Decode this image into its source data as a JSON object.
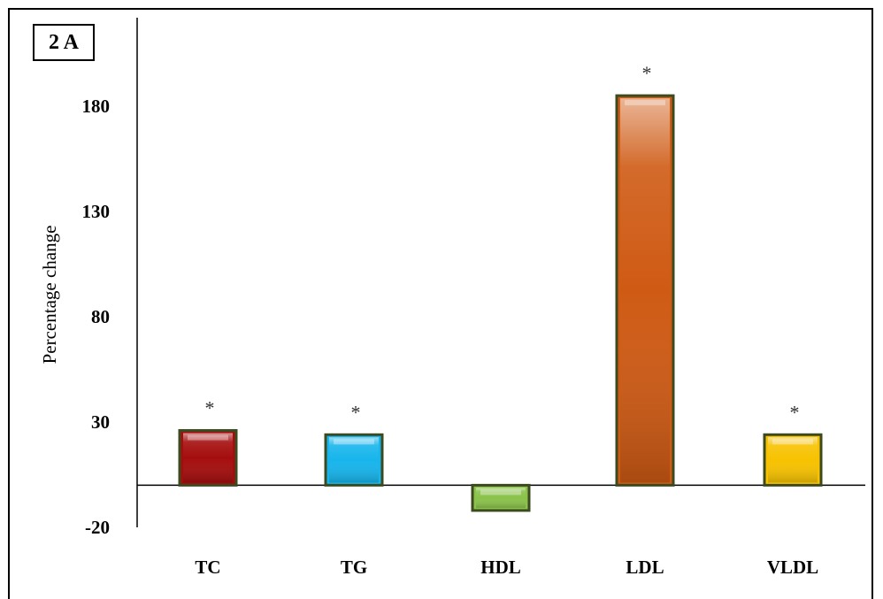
{
  "panel_label": "2 A",
  "chart_data": {
    "type": "bar",
    "categories": [
      "TC",
      "TG",
      "HDL",
      "LDL",
      "VLDL"
    ],
    "values": [
      26,
      24,
      -12,
      185,
      24
    ],
    "significance": [
      "*",
      "*",
      "",
      "*",
      "*"
    ],
    "bar_colors": [
      "#a50d0d",
      "#17b5ec",
      "#8ac24a",
      "#cf5a14",
      "#f7c200"
    ],
    "bar_outline": "#3b4a1f",
    "ylabel": "Percentage change",
    "xlabel": "",
    "yticks": [
      -20,
      30,
      80,
      130,
      180
    ],
    "ylim": [
      -20,
      200
    ],
    "grid": false,
    "legend": "none"
  }
}
